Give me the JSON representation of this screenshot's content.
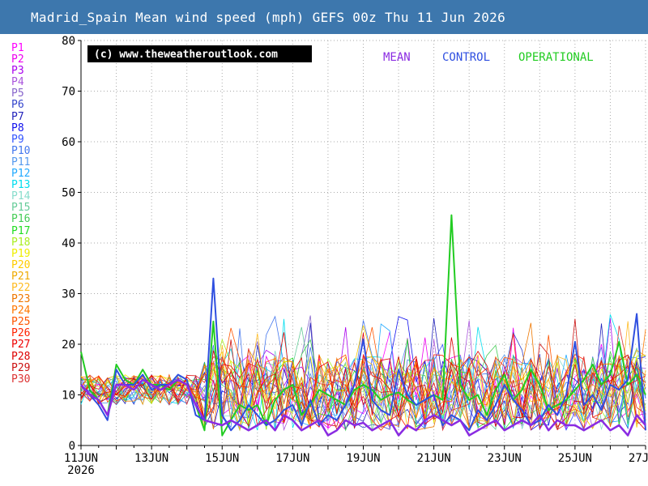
{
  "title": "Madrid_Spain Mean wind speed (mph) GEFS 00z Thu 11 Jun 2026",
  "watermark": "(c) www.theweatheroutlook.com",
  "legend_top": [
    {
      "label": "MEAN",
      "color": "#8a2be2"
    },
    {
      "label": "CONTROL",
      "color": "#2f4fe0"
    },
    {
      "label": "OPERATIONAL",
      "color": "#22cc22"
    }
  ],
  "members": [
    {
      "label": "P1",
      "color": "#ff00ff"
    },
    {
      "label": "P2",
      "color": "#ee00ee"
    },
    {
      "label": "P3",
      "color": "#aa00ee"
    },
    {
      "label": "P4",
      "color": "#aa55dd"
    },
    {
      "label": "P5",
      "color": "#8866cc"
    },
    {
      "label": "P6",
      "color": "#3344cc"
    },
    {
      "label": "P7",
      "color": "#2222bb"
    },
    {
      "label": "P8",
      "color": "#1111ee"
    },
    {
      "label": "P9",
      "color": "#3355ff"
    },
    {
      "label": "P10",
      "color": "#4477ee"
    },
    {
      "label": "P11",
      "color": "#5599ee"
    },
    {
      "label": "P12",
      "color": "#22aaff"
    },
    {
      "label": "P13",
      "color": "#00ddee"
    },
    {
      "label": "P14",
      "color": "#88ddcc"
    },
    {
      "label": "P15",
      "color": "#66cc99"
    },
    {
      "label": "P16",
      "color": "#44cc55"
    },
    {
      "label": "P17",
      "color": "#22dd22"
    },
    {
      "label": "P18",
      "color": "#aaee22"
    },
    {
      "label": "P19",
      "color": "#eeee00"
    },
    {
      "label": "P20",
      "color": "#ffcc00"
    },
    {
      "label": "P21",
      "color": "#eeaa00"
    },
    {
      "label": "P22",
      "color": "#ffbb22"
    },
    {
      "label": "P23",
      "color": "#ee7700"
    },
    {
      "label": "P24",
      "color": "#ff7700"
    },
    {
      "label": "P25",
      "color": "#ff5500"
    },
    {
      "label": "P26",
      "color": "#ff2200"
    },
    {
      "label": "P27",
      "color": "#ee0000"
    },
    {
      "label": "P28",
      "color": "#dd0000"
    },
    {
      "label": "P29",
      "color": "#cc1111"
    },
    {
      "label": "P30",
      "color": "#dd3333"
    }
  ],
  "chart_data": {
    "type": "line",
    "title": "Madrid_Spain Mean wind speed (mph) GEFS 00z Thu 11 Jun 2026",
    "ylabel": "",
    "xlabel": "",
    "ylim": [
      0,
      80
    ],
    "yticks": [
      0,
      10,
      20,
      30,
      40,
      50,
      60,
      70,
      80
    ],
    "xlim_days": [
      0,
      16
    ],
    "xticks": [
      {
        "day": 0,
        "label": "11JUN",
        "sub": "2026"
      },
      {
        "day": 2,
        "label": "13JUN",
        "sub": ""
      },
      {
        "day": 4,
        "label": "15JUN",
        "sub": ""
      },
      {
        "day": 6,
        "label": "17JUN",
        "sub": ""
      },
      {
        "day": 8,
        "label": "19JUN",
        "sub": ""
      },
      {
        "day": 10,
        "label": "21JUN",
        "sub": ""
      },
      {
        "day": 12,
        "label": "23JUN",
        "sub": ""
      },
      {
        "day": 14,
        "label": "25JUN",
        "sub": ""
      },
      {
        "day": 16,
        "label": "27JUN",
        "sub": ""
      }
    ],
    "grid": true,
    "legend_position": "top-right",
    "series": [
      {
        "name": "OPERATIONAL",
        "color": "#22cc22",
        "width": 2,
        "x": [
          0,
          0.25,
          0.5,
          0.75,
          1,
          1.25,
          1.5,
          1.75,
          2,
          2.25,
          2.5,
          2.75,
          3,
          3.25,
          3.5,
          3.75,
          4,
          4.25,
          4.5,
          4.75,
          5,
          5.25,
          5.5,
          5.75,
          6,
          6.25,
          6.5,
          6.75,
          7,
          7.25,
          7.5,
          7.75,
          8,
          8.25,
          8.5,
          8.75,
          9,
          9.25,
          9.5,
          9.75,
          10,
          10.25,
          10.5,
          10.75,
          11,
          11.25,
          11.5,
          11.75,
          12,
          12.25,
          12.5,
          12.75,
          13,
          13.25,
          13.5,
          13.75,
          14,
          14.25,
          14.5,
          14.75,
          15,
          15.25,
          15.5,
          15.75,
          16
        ],
        "y": [
          18.5,
          11,
          9,
          6,
          16,
          13,
          12,
          15,
          12,
          12,
          11,
          13,
          12,
          8,
          3,
          24.5,
          2,
          5,
          8,
          7,
          8,
          4,
          9,
          11,
          12,
          6,
          8,
          11,
          10,
          9,
          8,
          11,
          12,
          11,
          9,
          10,
          10.5,
          9,
          8,
          9,
          10,
          9,
          45.5,
          12,
          9,
          10,
          6,
          11,
          14,
          9,
          11,
          15,
          12,
          7,
          8,
          9,
          11,
          13,
          16,
          12,
          14,
          20.5,
          12,
          14,
          10
        ]
      },
      {
        "name": "CONTROL",
        "color": "#2f4fe0",
        "width": 2,
        "x": [
          0,
          0.25,
          0.5,
          0.75,
          1,
          1.25,
          1.5,
          1.75,
          2,
          2.25,
          2.5,
          2.75,
          3,
          3.25,
          3.5,
          3.75,
          4,
          4.25,
          4.5,
          4.75,
          5,
          5.25,
          5.5,
          5.75,
          6,
          6.25,
          6.5,
          6.75,
          7,
          7.25,
          7.5,
          7.75,
          8,
          8.25,
          8.5,
          8.75,
          9,
          9.25,
          9.5,
          9.75,
          10,
          10.25,
          10.5,
          10.75,
          11,
          11.25,
          11.5,
          11.75,
          12,
          12.25,
          12.5,
          12.75,
          13,
          13.25,
          13.5,
          13.75,
          14,
          14.25,
          14.5,
          14.75,
          15,
          15.25,
          15.5,
          15.75,
          16
        ],
        "y": [
          12,
          10,
          8,
          5,
          15,
          12,
          12,
          14,
          11,
          12,
          12,
          14,
          13,
          6,
          5,
          33,
          6,
          3,
          5,
          8,
          6,
          4,
          5,
          7,
          8,
          4,
          9,
          4,
          6,
          5,
          8,
          12,
          21,
          9,
          7,
          6,
          15,
          10,
          8,
          9,
          10,
          4,
          6,
          5,
          3,
          7,
          5,
          8,
          12,
          9,
          7,
          4,
          5,
          8,
          6,
          10,
          20.5,
          8,
          10,
          7,
          12,
          11,
          13,
          26,
          3
        ]
      },
      {
        "name": "MEAN",
        "color": "#8a2be2",
        "width": 2.5,
        "x": [
          0,
          0.25,
          0.5,
          0.75,
          1,
          1.25,
          1.5,
          1.75,
          2,
          2.25,
          2.5,
          2.75,
          3,
          3.25,
          3.5,
          3.75,
          4,
          4.25,
          4.5,
          4.75,
          5,
          5.25,
          5.5,
          5.75,
          6,
          6.25,
          6.5,
          6.75,
          7,
          7.25,
          7.5,
          7.75,
          8,
          8.25,
          8.5,
          8.75,
          9,
          9.25,
          9.5,
          9.75,
          10,
          10.25,
          10.5,
          10.75,
          11,
          11.25,
          11.5,
          11.75,
          12,
          12.25,
          12.5,
          12.75,
          13,
          13.25,
          13.5,
          13.75,
          14,
          14.25,
          14.5,
          14.75,
          15,
          15.25,
          15.5,
          15.75,
          16
        ],
        "y": [
          12,
          10,
          9,
          6,
          12,
          12,
          11,
          13,
          12,
          11,
          12,
          13,
          12,
          8,
          5,
          4.5,
          4,
          5,
          4,
          3,
          4,
          5,
          3,
          6,
          5,
          3,
          4,
          5,
          2,
          3,
          5,
          4,
          4.5,
          3,
          4,
          5,
          2,
          4,
          3,
          5,
          6,
          5,
          4,
          5,
          2,
          3,
          4,
          5,
          3,
          4,
          5,
          4,
          6,
          3,
          5,
          4,
          4,
          3,
          4,
          5,
          3,
          4,
          2,
          6,
          4
        ]
      }
    ],
    "ensemble_members_note": "P1–P30 plotted as thin lines",
    "ensemble_seed_peaks": [
      20.5,
      14,
      21,
      25,
      21,
      29,
      27,
      27,
      22,
      29,
      23,
      23,
      28.5,
      26
    ]
  }
}
